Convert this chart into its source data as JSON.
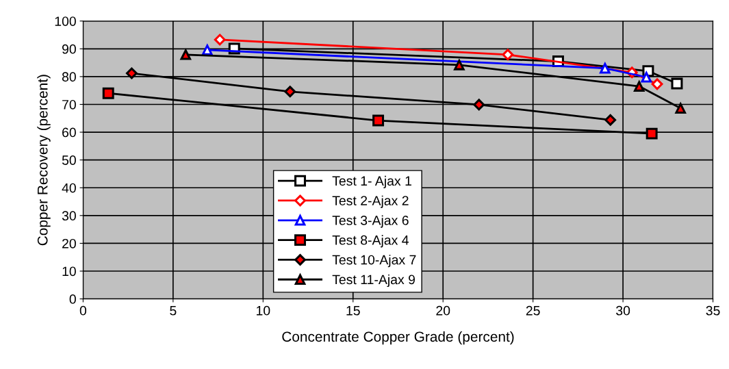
{
  "chart_data": {
    "type": "line",
    "xlabel": "Concentrate Copper Grade (percent)",
    "ylabel": "Copper Recovery (percent)",
    "xlim": [
      0,
      35
    ],
    "xticks": [
      0,
      5,
      10,
      15,
      20,
      25,
      30,
      35
    ],
    "ylim": [
      0,
      100
    ],
    "yticks": [
      0,
      10,
      20,
      30,
      40,
      50,
      60,
      70,
      80,
      90,
      100
    ],
    "grid": true,
    "legend": "bottom",
    "series": [
      {
        "name": "Test 1- Ajax 1",
        "color": "#000000",
        "marker": "square",
        "x": [
          8.4,
          26.4,
          31.4,
          33.0
        ],
        "values": [
          90.1,
          85.5,
          82.0,
          77.5
        ]
      },
      {
        "name": "Test 2-Ajax 2",
        "color": "#ff0000",
        "marker": "diamond",
        "x": [
          7.6,
          23.6,
          30.5,
          31.9
        ],
        "values": [
          93.3,
          87.9,
          81.5,
          77.3
        ]
      },
      {
        "name": "Test 3-Ajax 6",
        "color": "#0000ff",
        "marker": "triangle",
        "x": [
          6.9,
          29.0,
          31.3
        ],
        "values": [
          89.6,
          83.0,
          79.8
        ]
      },
      {
        "name": "Test 8-Ajax 4",
        "color": "#000000",
        "marker": "square",
        "x": [
          1.4,
          16.4,
          31.6
        ],
        "values": [
          74.0,
          64.2,
          59.5
        ]
      },
      {
        "name": "Test 10-Ajax 7",
        "color": "#000000",
        "marker": "diamond",
        "x": [
          2.7,
          11.5,
          22.0,
          29.3
        ],
        "values": [
          81.2,
          74.6,
          69.9,
          64.4
        ]
      },
      {
        "name": "Test 11-Ajax 9",
        "color": "#000000",
        "marker": "triangle",
        "x": [
          5.7,
          20.9,
          30.9,
          33.2
        ],
        "values": [
          87.9,
          84.2,
          76.5,
          68.6
        ]
      }
    ]
  }
}
